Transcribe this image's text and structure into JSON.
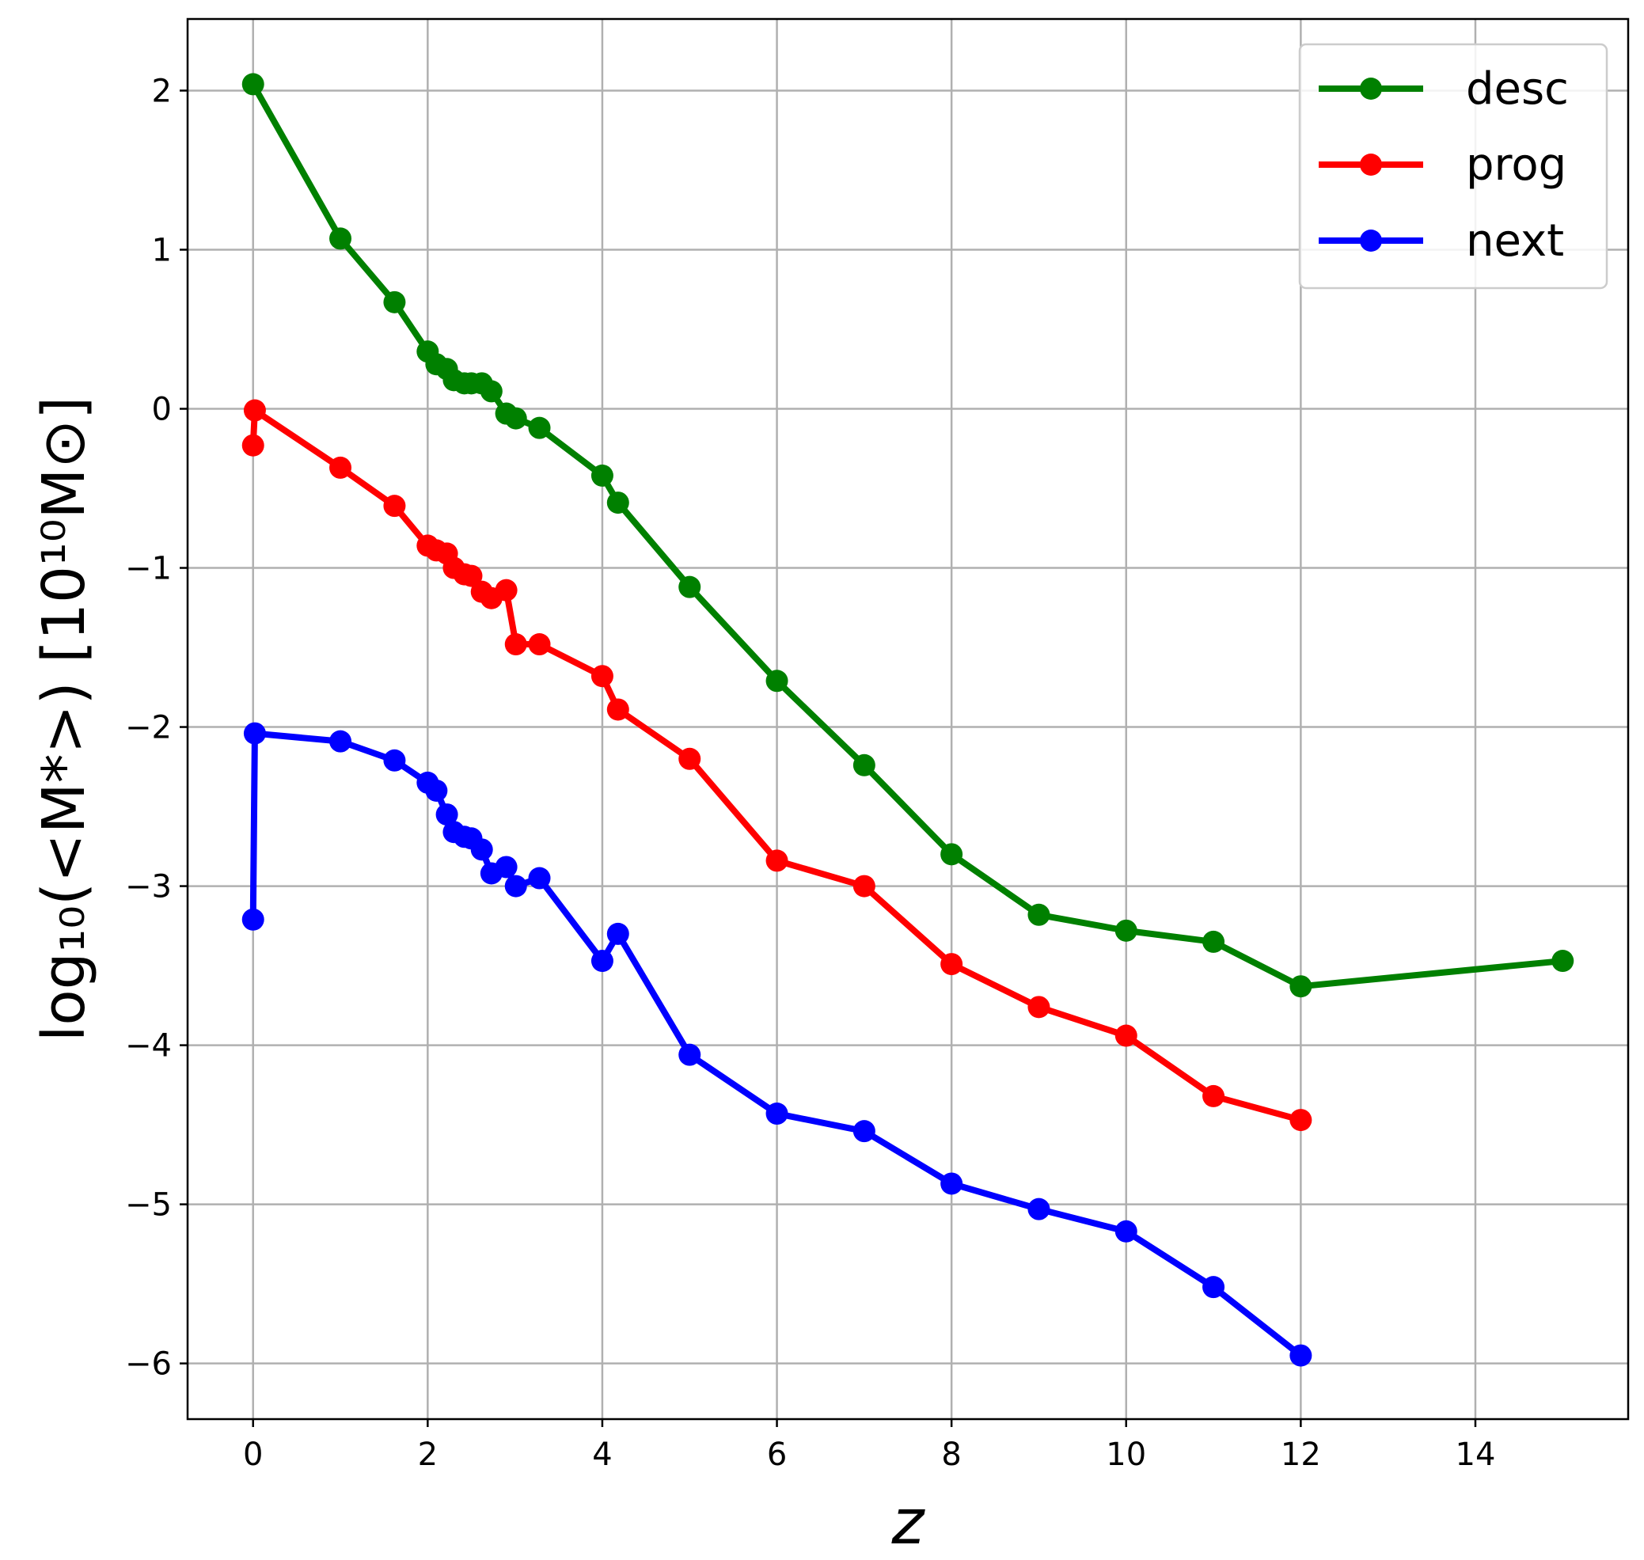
{
  "chart_data": {
    "type": "line",
    "xlabel": "z",
    "ylabel": "log₁₀(<M*>) [10¹⁰M⊙]",
    "xlim": [
      -0.75,
      15.75
    ],
    "ylim": [
      -6.35,
      2.45
    ],
    "xticks": [
      0,
      2,
      4,
      6,
      8,
      10,
      12,
      14
    ],
    "yticks": [
      2,
      1,
      0,
      -1,
      -2,
      -3,
      -4,
      -5,
      -6
    ],
    "xtick_labels": [
      "0",
      "2",
      "4",
      "6",
      "8",
      "10",
      "12",
      "14"
    ],
    "ytick_labels": [
      "2",
      "1",
      "0",
      "−1",
      "−2",
      "−3",
      "−4",
      "−5",
      "−6"
    ],
    "grid": true,
    "legend_position": "top-right",
    "series": [
      {
        "name": "desc",
        "color": "#008000",
        "points": [
          [
            0.0,
            2.04
          ],
          [
            1.0,
            1.07
          ],
          [
            1.62,
            0.67
          ],
          [
            2.0,
            0.36
          ],
          [
            2.1,
            0.28
          ],
          [
            2.22,
            0.25
          ],
          [
            2.3,
            0.18
          ],
          [
            2.42,
            0.16
          ],
          [
            2.5,
            0.16
          ],
          [
            2.62,
            0.16
          ],
          [
            2.73,
            0.11
          ],
          [
            2.9,
            -0.03
          ],
          [
            3.01,
            -0.06
          ],
          [
            3.28,
            -0.12
          ],
          [
            4.0,
            -0.42
          ],
          [
            4.18,
            -0.59
          ],
          [
            5.0,
            -1.12
          ],
          [
            6.0,
            -1.71
          ],
          [
            7.0,
            -2.24
          ],
          [
            8.0,
            -2.8
          ],
          [
            9.0,
            -3.18
          ],
          [
            10.0,
            -3.28
          ],
          [
            11.0,
            -3.35
          ],
          [
            12.0,
            -3.63
          ],
          [
            15.0,
            -3.47
          ]
        ]
      },
      {
        "name": "prog",
        "color": "#ff0000",
        "points": [
          [
            0.0,
            -0.23
          ],
          [
            0.02,
            -0.01
          ],
          [
            1.0,
            -0.37
          ],
          [
            1.62,
            -0.61
          ],
          [
            2.0,
            -0.86
          ],
          [
            2.1,
            -0.89
          ],
          [
            2.22,
            -0.91
          ],
          [
            2.3,
            -1.0
          ],
          [
            2.42,
            -1.04
          ],
          [
            2.5,
            -1.05
          ],
          [
            2.62,
            -1.15
          ],
          [
            2.73,
            -1.19
          ],
          [
            2.9,
            -1.14
          ],
          [
            3.01,
            -1.48
          ],
          [
            3.28,
            -1.48
          ],
          [
            4.0,
            -1.68
          ],
          [
            4.18,
            -1.89
          ],
          [
            5.0,
            -2.2
          ],
          [
            6.0,
            -2.84
          ],
          [
            7.0,
            -3.0
          ],
          [
            8.0,
            -3.49
          ],
          [
            9.0,
            -3.76
          ],
          [
            10.0,
            -3.94
          ],
          [
            11.0,
            -4.32
          ],
          [
            12.0,
            -4.47
          ]
        ]
      },
      {
        "name": "next",
        "color": "#0000ff",
        "points": [
          [
            0.0,
            -3.21
          ],
          [
            0.02,
            -2.04
          ],
          [
            1.0,
            -2.09
          ],
          [
            1.62,
            -2.21
          ],
          [
            2.0,
            -2.35
          ],
          [
            2.1,
            -2.4
          ],
          [
            2.22,
            -2.55
          ],
          [
            2.3,
            -2.66
          ],
          [
            2.42,
            -2.69
          ],
          [
            2.5,
            -2.7
          ],
          [
            2.62,
            -2.77
          ],
          [
            2.73,
            -2.92
          ],
          [
            2.9,
            -2.88
          ],
          [
            3.01,
            -3.0
          ],
          [
            3.28,
            -2.95
          ],
          [
            4.0,
            -3.47
          ],
          [
            4.18,
            -3.3
          ],
          [
            5.0,
            -4.06
          ],
          [
            6.0,
            -4.43
          ],
          [
            7.0,
            -4.54
          ],
          [
            8.0,
            -4.87
          ],
          [
            9.0,
            -5.03
          ],
          [
            10.0,
            -5.17
          ],
          [
            11.0,
            -5.52
          ],
          [
            12.0,
            -5.95
          ]
        ]
      }
    ]
  }
}
